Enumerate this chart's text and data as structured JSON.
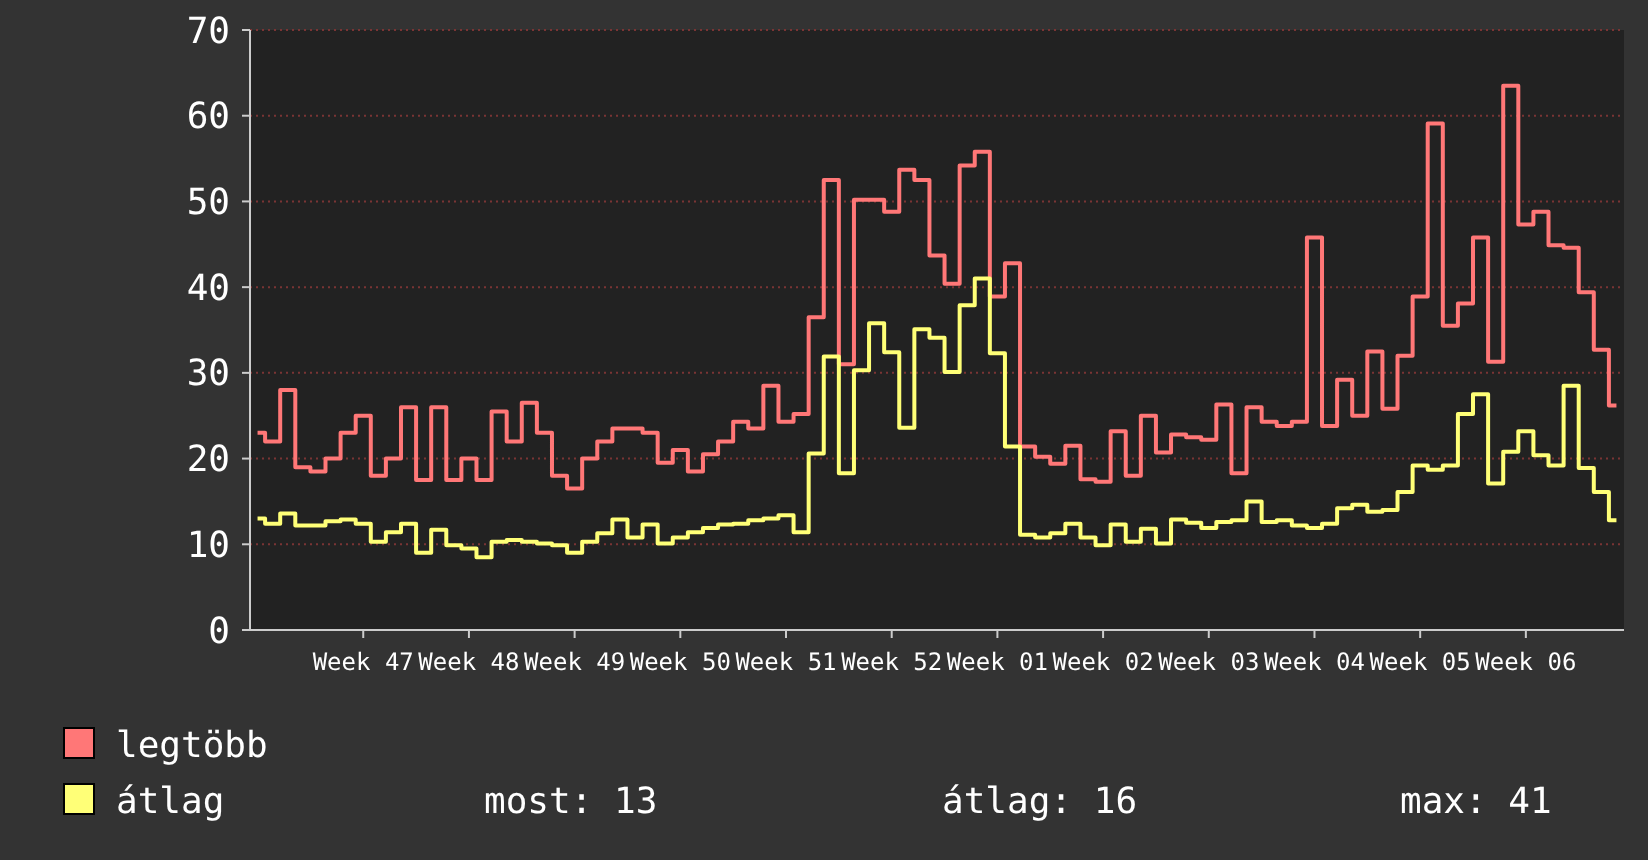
{
  "chart_data": {
    "type": "step",
    "categories": [
      null,
      null,
      null,
      null,
      null,
      null,
      null,
      "Week 47",
      null,
      null,
      null,
      null,
      null,
      null,
      "Week 48",
      null,
      null,
      null,
      null,
      null,
      null,
      "Week 49",
      null,
      null,
      null,
      null,
      null,
      null,
      "Week 50",
      null,
      null,
      null,
      null,
      null,
      null,
      "Week 51",
      null,
      null,
      null,
      null,
      null,
      null,
      "Week 52",
      null,
      null,
      null,
      null,
      null,
      null,
      "Week 01",
      null,
      null,
      null,
      null,
      null,
      null,
      "Week 02",
      null,
      null,
      null,
      null,
      null,
      null,
      "Week 03",
      null,
      null,
      null,
      null,
      null,
      null,
      "Week 04",
      null,
      null,
      null,
      null,
      null,
      null,
      "Week 05",
      null,
      null,
      null,
      null,
      null,
      null,
      "Week 06",
      null,
      null,
      null,
      null,
      null,
      null
    ],
    "ylim": [
      0,
      70
    ],
    "yticks": [
      0,
      10,
      20,
      30,
      40,
      50,
      60,
      70
    ],
    "grid": "y",
    "legend": "bottom left",
    "series": [
      {
        "name": "legtöbb",
        "color": "#ff7777",
        "values": [
          23,
          22,
          28,
          19,
          18.5,
          20,
          23,
          25,
          18,
          20,
          26,
          17.5,
          26,
          17.5,
          20,
          17.5,
          25.5,
          22,
          26.5,
          23,
          18,
          16.5,
          20,
          22,
          23.5,
          23.5,
          23,
          19.5,
          21,
          18.5,
          20.5,
          22,
          24.3,
          23.5,
          28.5,
          24.3,
          25.2,
          36.5,
          52.5,
          31,
          50.2,
          50.2,
          48.8,
          53.7,
          52.5,
          43.7,
          40.4,
          54.2,
          55.8,
          38.9,
          42.8,
          21.4,
          20.2,
          19.4,
          21.5,
          17.6,
          17.3,
          23.2,
          18,
          25,
          20.7,
          22.8,
          22.5,
          22.2,
          26.3,
          18.3,
          26,
          24.3,
          23.8,
          24.3,
          45.8,
          23.8,
          29.2,
          25,
          32.5,
          25.8,
          32,
          38.9,
          59.1,
          35.5,
          38.1,
          45.8,
          31.3,
          63.5,
          47.3,
          48.8,
          44.9,
          44.6,
          39.4,
          32.7,
          26.2
        ]
      },
      {
        "name": "átlag",
        "color": "#ffff77",
        "values": [
          13,
          12.4,
          13.6,
          12.2,
          12.2,
          12.7,
          12.9,
          12.4,
          10.3,
          11.4,
          12.4,
          9,
          11.7,
          9.9,
          9.5,
          8.5,
          10.3,
          10.5,
          10.3,
          10.1,
          9.9,
          9,
          10.3,
          11.3,
          12.9,
          10.8,
          12.3,
          10.1,
          10.8,
          11.4,
          11.9,
          12.3,
          12.4,
          12.8,
          13,
          13.4,
          11.4,
          20.6,
          31.9,
          18.3,
          30.3,
          35.8,
          32.4,
          23.6,
          35.1,
          34.1,
          30.1,
          37.9,
          41,
          32.3,
          21.4,
          11.1,
          10.8,
          11.3,
          12.4,
          10.8,
          9.9,
          12.3,
          10.3,
          11.8,
          10.1,
          12.9,
          12.5,
          11.9,
          12.6,
          12.8,
          15,
          12.6,
          12.8,
          12.2,
          11.9,
          12.4,
          14.2,
          14.6,
          13.8,
          14,
          16.1,
          19.2,
          18.7,
          19.2,
          25.2,
          27.5,
          17.1,
          20.8,
          23.2,
          20.4,
          19.2,
          28.5,
          18.9,
          16.1,
          12.8
        ]
      }
    ],
    "annotations": [
      "most: 13",
      "átlag: 16",
      "max: 41"
    ]
  }
}
